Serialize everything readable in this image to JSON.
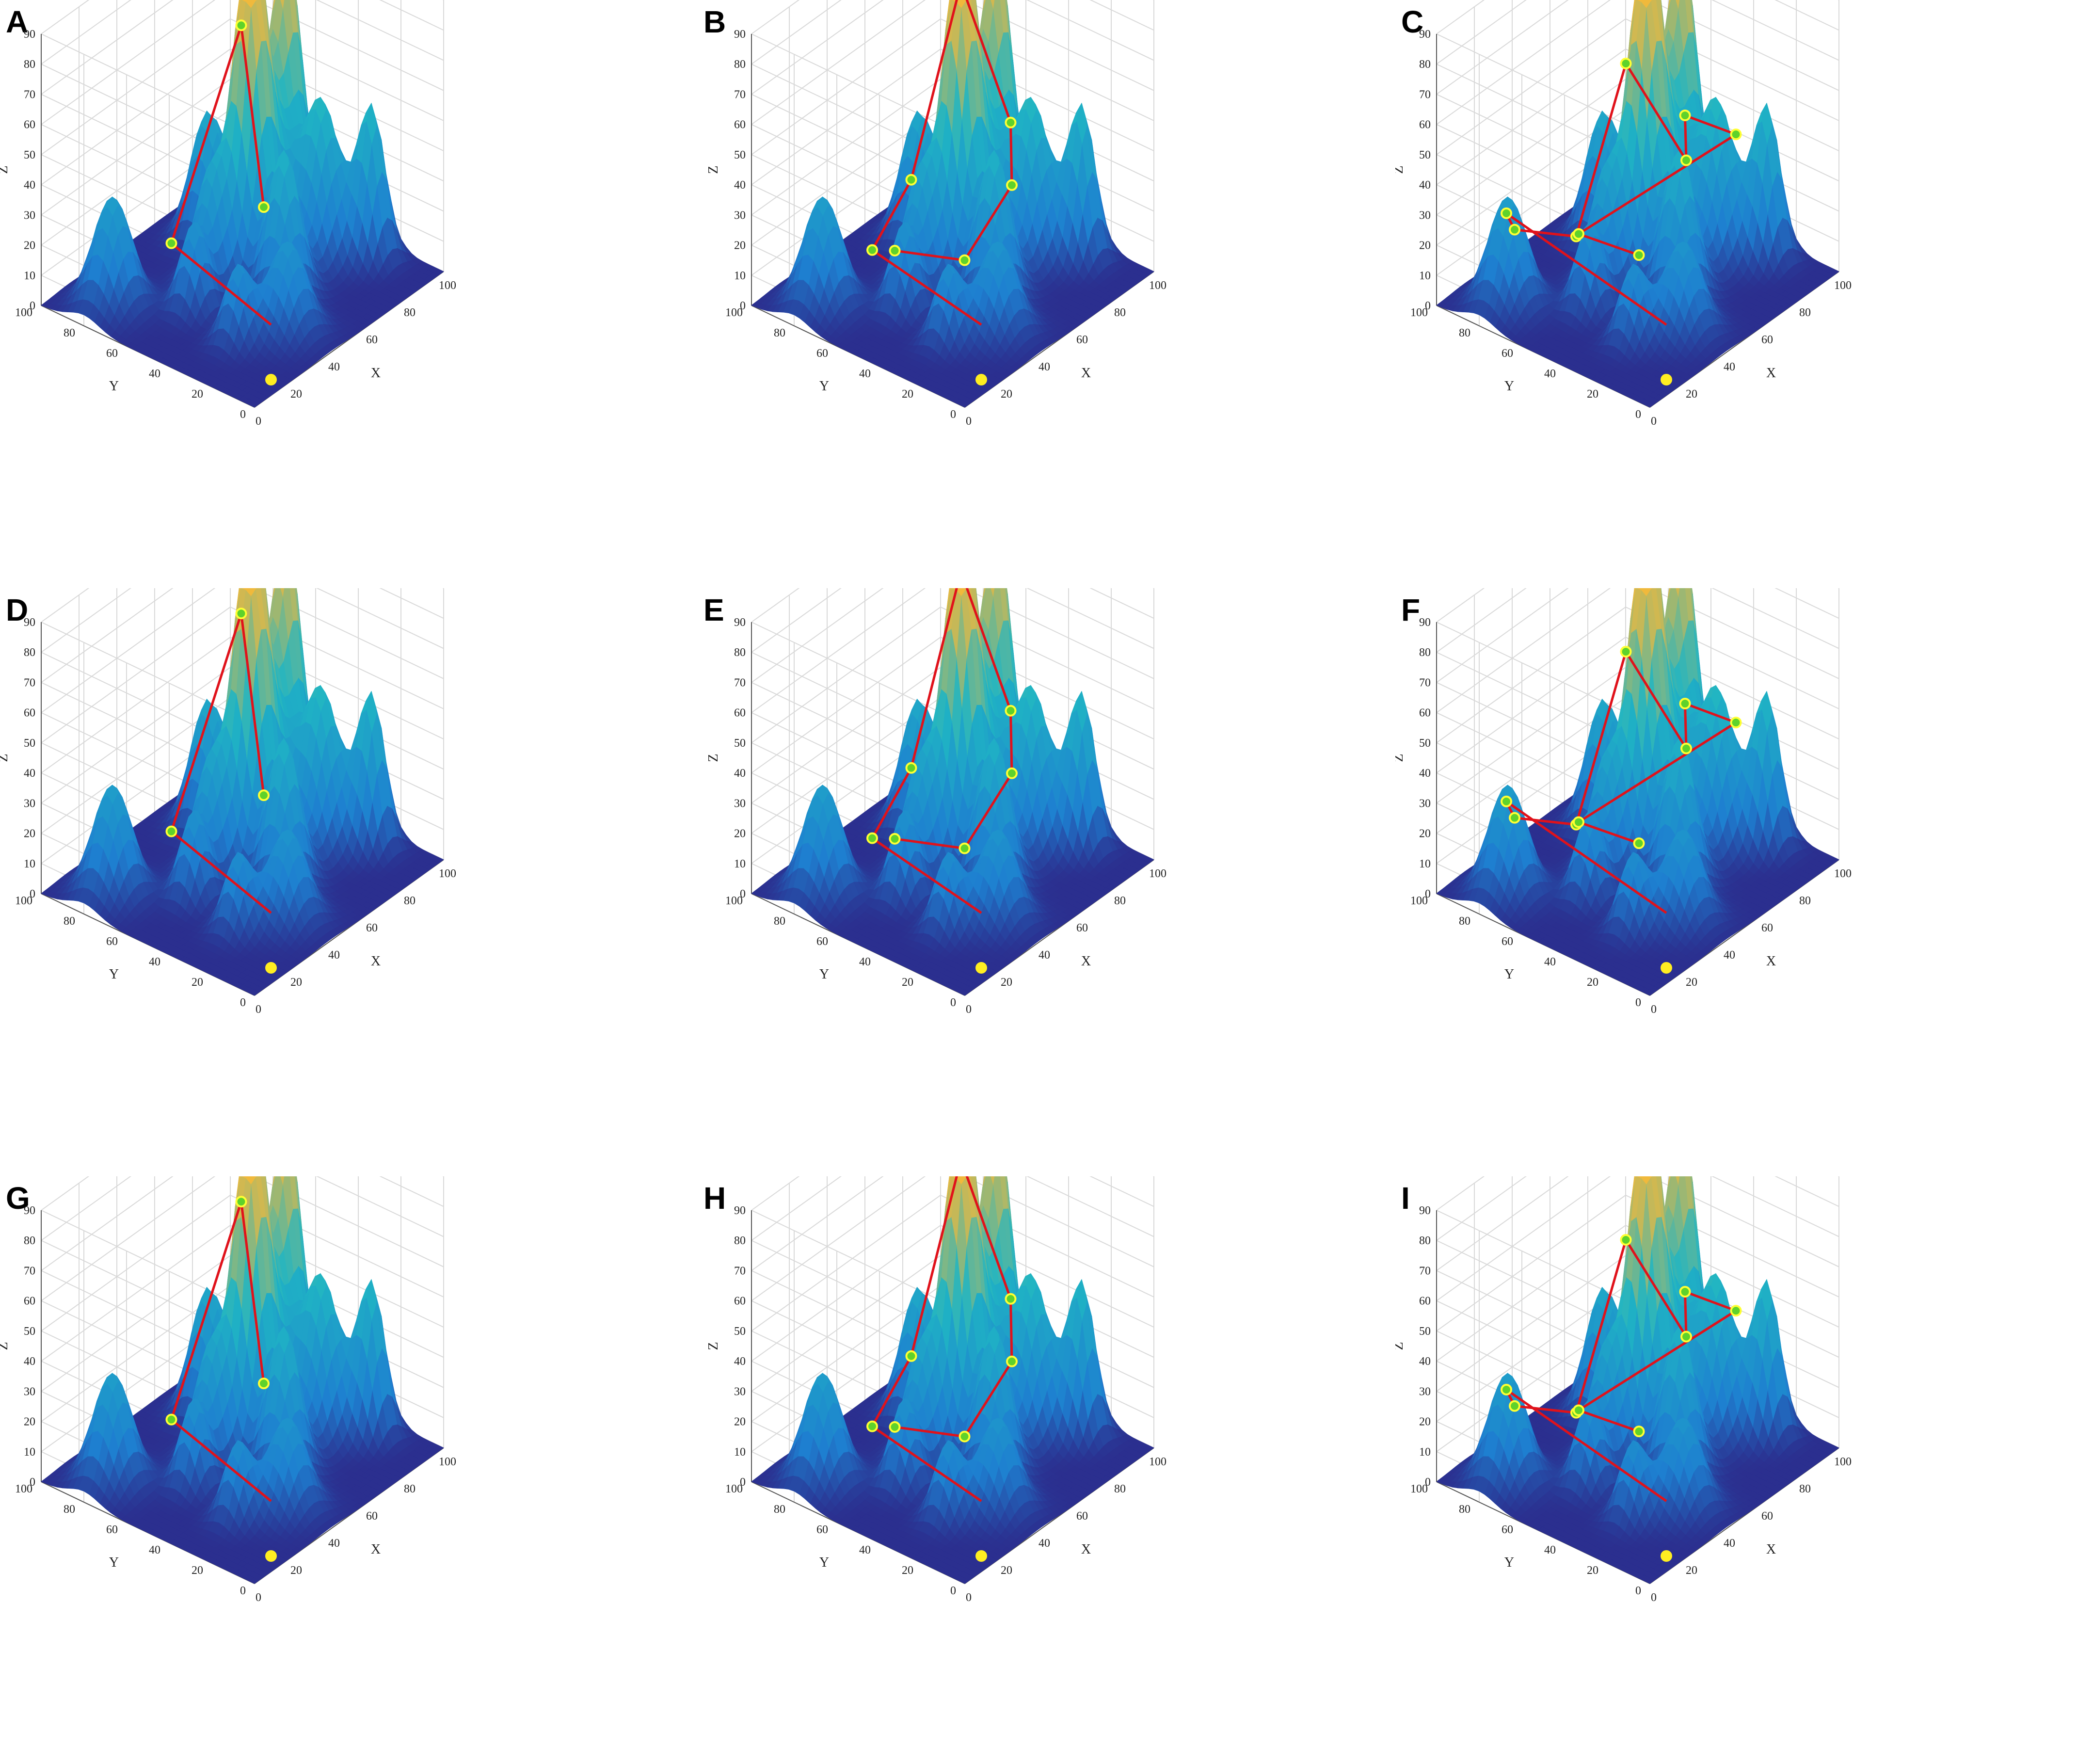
{
  "figure": {
    "panels": [
      "A",
      "B",
      "C",
      "D",
      "E",
      "F",
      "G",
      "H",
      "I"
    ]
  },
  "colors": {
    "surface_low": "#2b2f8f",
    "surface_mid": "#1e7fd0",
    "surface_high": "#1fb5c4",
    "surface_peak": "#f2b93b",
    "path": "#e0121b",
    "waypoint_fill": "#5fd22b",
    "waypoint_ring": "#ffff33",
    "start": "#ffee22",
    "grid": "#d9d9d9"
  },
  "chart_data": [
    {
      "panel": "A",
      "type": "surface",
      "xlabel": "X",
      "ylabel": "Y",
      "zlabel": "Z",
      "xticks": [
        "0",
        "20",
        "40",
        "60",
        "80",
        "100"
      ],
      "yticks": [
        "0",
        "20",
        "40",
        "60",
        "80",
        "100"
      ],
      "zticks": [
        "0",
        "10",
        "20",
        "30",
        "40",
        "50",
        "60",
        "70",
        "80",
        "90"
      ],
      "xlim": [
        0,
        100
      ],
      "ylim": [
        0,
        100
      ],
      "zlim": [
        0,
        90
      ],
      "grid": true
    },
    {
      "panel": "B",
      "type": "surface",
      "xlabel": "X",
      "ylabel": "Y",
      "zlabel": "Z",
      "xticks": [
        "0",
        "20",
        "40",
        "60",
        "80",
        "100"
      ],
      "yticks": [
        "0",
        "20",
        "40",
        "60",
        "80",
        "100"
      ],
      "zticks": [
        "0",
        "10",
        "20",
        "30",
        "40",
        "50",
        "60",
        "70",
        "80",
        "90"
      ],
      "xlim": [
        0,
        100
      ],
      "ylim": [
        0,
        100
      ],
      "zlim": [
        0,
        90
      ],
      "grid": true
    },
    {
      "panel": "C",
      "type": "surface",
      "xlabel": "X",
      "ylabel": "Y",
      "zlabel": "Z",
      "xticks": [
        "0",
        "20",
        "40",
        "60",
        "80",
        "100"
      ],
      "yticks": [
        "0",
        "20",
        "40",
        "60",
        "80",
        "100"
      ],
      "zticks": [
        "0",
        "10",
        "20",
        "30",
        "40",
        "50",
        "60",
        "70",
        "80",
        "90"
      ],
      "xlim": [
        0,
        100
      ],
      "ylim": [
        0,
        100
      ],
      "zlim": [
        0,
        90
      ],
      "grid": true
    },
    {
      "panel": "D",
      "type": "surface",
      "xlabel": "X",
      "ylabel": "Y",
      "zlabel": "Z",
      "xticks": [
        "0",
        "20",
        "40",
        "60",
        "80",
        "100"
      ],
      "yticks": [
        "0",
        "20",
        "40",
        "60",
        "80",
        "100"
      ],
      "zticks": [
        "0",
        "10",
        "20",
        "30",
        "40",
        "50",
        "60",
        "70",
        "80",
        "90"
      ],
      "xlim": [
        0,
        100
      ],
      "ylim": [
        0,
        100
      ],
      "zlim": [
        0,
        90
      ],
      "grid": true
    },
    {
      "panel": "E",
      "type": "surface",
      "xlabel": "X",
      "ylabel": "Y",
      "zlabel": "Z",
      "xticks": [
        "0",
        "20",
        "40",
        "60",
        "80",
        "100"
      ],
      "yticks": [
        "0",
        "20",
        "40",
        "60",
        "80",
        "100"
      ],
      "zticks": [
        "0",
        "10",
        "20",
        "30",
        "40",
        "50",
        "60",
        "70",
        "80",
        "90"
      ],
      "xlim": [
        0,
        100
      ],
      "ylim": [
        0,
        100
      ],
      "zlim": [
        0,
        90
      ],
      "grid": true
    },
    {
      "panel": "F",
      "type": "surface",
      "xlabel": "X",
      "ylabel": "Y",
      "zlabel": "Z",
      "xticks": [
        "0",
        "20",
        "40",
        "60",
        "80",
        "100"
      ],
      "yticks": [
        "0",
        "20",
        "40",
        "60",
        "80",
        "100"
      ],
      "zticks": [
        "0",
        "10",
        "20",
        "30",
        "40",
        "50",
        "60",
        "70",
        "80",
        "90"
      ],
      "xlim": [
        0,
        100
      ],
      "ylim": [
        0,
        100
      ],
      "zlim": [
        0,
        90
      ],
      "grid": true
    },
    {
      "panel": "G",
      "type": "surface",
      "xlabel": "X",
      "ylabel": "Y",
      "zlabel": "Z",
      "xticks": [
        "0",
        "20",
        "40",
        "60",
        "80",
        "100"
      ],
      "yticks": [
        "0",
        "20",
        "40",
        "60",
        "80",
        "100"
      ],
      "zticks": [
        "0",
        "10",
        "20",
        "30",
        "40",
        "50",
        "60",
        "70",
        "80",
        "90"
      ],
      "xlim": [
        0,
        100
      ],
      "ylim": [
        0,
        100
      ],
      "zlim": [
        0,
        90
      ],
      "grid": true
    },
    {
      "panel": "H",
      "type": "surface",
      "xlabel": "X",
      "ylabel": "Y",
      "zlabel": "Z",
      "xticks": [
        "0",
        "20",
        "40",
        "60",
        "80",
        "100"
      ],
      "yticks": [
        "0",
        "20",
        "40",
        "60",
        "80",
        "100"
      ],
      "zticks": [
        "0",
        "10",
        "20",
        "30",
        "40",
        "50",
        "60",
        "70",
        "80",
        "90"
      ],
      "xlim": [
        0,
        100
      ],
      "ylim": [
        0,
        100
      ],
      "zlim": [
        0,
        90
      ],
      "grid": true
    },
    {
      "panel": "I",
      "type": "surface",
      "xlabel": "X",
      "ylabel": "Y",
      "zlabel": "Z",
      "xticks": [
        "0",
        "20",
        "40",
        "60",
        "80",
        "100"
      ],
      "yticks": [
        "0",
        "20",
        "40",
        "60",
        "80",
        "100"
      ],
      "zticks": [
        "0",
        "10",
        "20",
        "30",
        "40",
        "50",
        "60",
        "70",
        "80",
        "90"
      ],
      "xlim": [
        0,
        100
      ],
      "ylim": [
        0,
        100
      ],
      "zlim": [
        0,
        90
      ],
      "grid": true
    }
  ]
}
